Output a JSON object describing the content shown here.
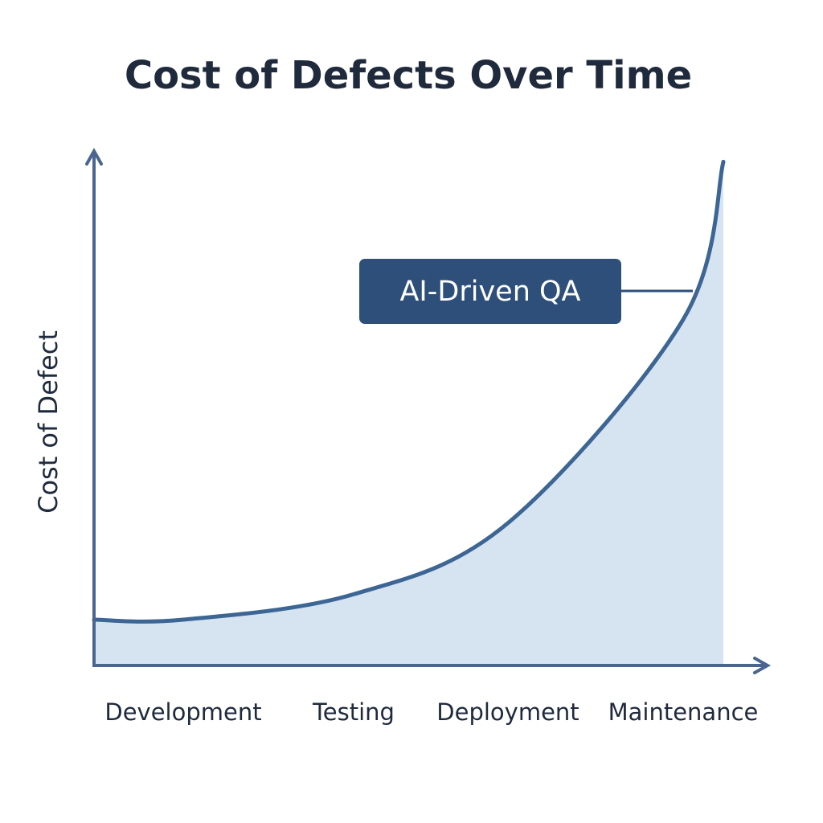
{
  "chart_data": {
    "type": "area",
    "title": "Cost of Defects Over Time",
    "y_label": "Cost of Defect",
    "categories": [
      null,
      "Development",
      "Testing",
      "Deployment",
      "Maintenance",
      null
    ],
    "values": [
      9,
      9,
      14,
      28,
      68,
      99
    ],
    "ylim": [
      0,
      100
    ],
    "color": "#3d6694",
    "fill_color": "#d6e4f2",
    "annotation": "AI-Driven QA"
  }
}
